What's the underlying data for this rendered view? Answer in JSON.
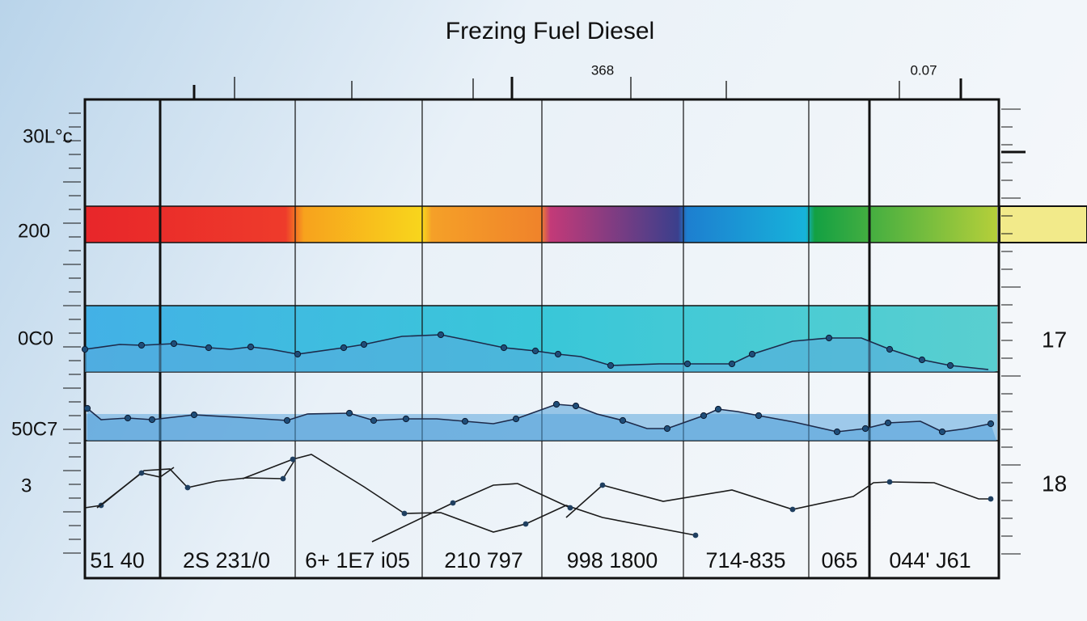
{
  "chart_data": {
    "type": "line",
    "title": "Frezing Fuel Diesel",
    "top_labels": [
      "368",
      "0.07"
    ],
    "left_labels": [
      "30L°c",
      "200",
      "0C0",
      "50C7",
      "3"
    ],
    "right_labels": [
      "17",
      "18"
    ],
    "categories": [
      "51 40",
      "2S 231/0",
      "6+ 1E7 i05",
      "210 797",
      "998 1800",
      "714-835",
      "065",
      "044' J61"
    ]
  }
}
